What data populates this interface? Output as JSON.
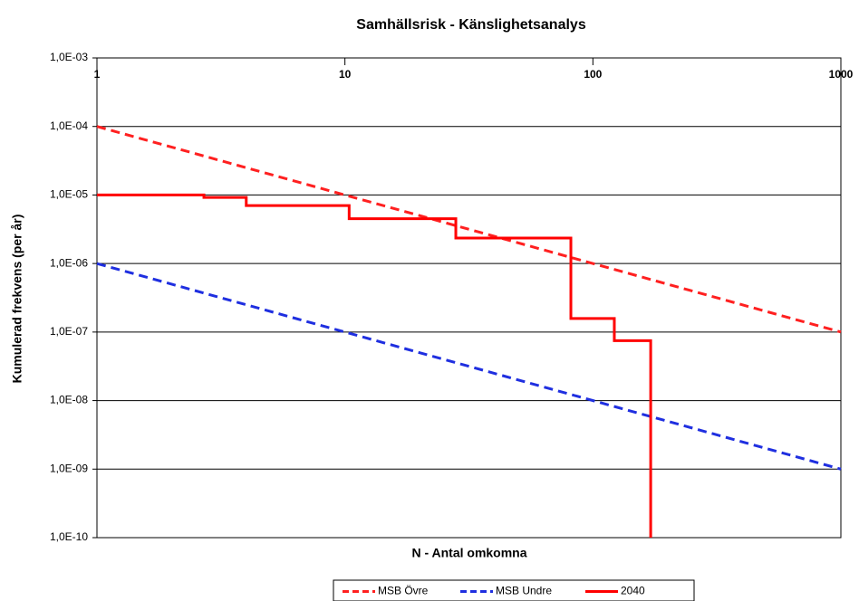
{
  "chart_data": {
    "type": "line",
    "title": "Samhällsrisk - Känslighetsanalys",
    "xlabel": "N - Antal omkomna",
    "ylabel": "Kumulerad frekvens (per år)",
    "xscale": "log",
    "yscale": "log",
    "xlim": [
      1,
      1000
    ],
    "ylim": [
      1e-10,
      0.001
    ],
    "xticks": [
      1,
      10,
      100,
      1000
    ],
    "yticks": [
      {
        "value": 0.001,
        "label": "1,0E-03"
      },
      {
        "value": 0.0001,
        "label": "1,0E-04"
      },
      {
        "value": 1e-05,
        "label": "1,0E-05"
      },
      {
        "value": 1e-06,
        "label": "1,0E-06"
      },
      {
        "value": 1e-07,
        "label": "1,0E-07"
      },
      {
        "value": 1e-08,
        "label": "1,0E-08"
      },
      {
        "value": 1e-09,
        "label": "1,0E-09"
      },
      {
        "value": 1e-10,
        "label": "1,0E-10"
      }
    ],
    "grid": true,
    "legend": "bottom",
    "series": [
      {
        "name": "MSB Övre",
        "color": "#ff2020",
        "linestyle": "dashed",
        "x": [
          1,
          1000
        ],
        "values": [
          0.0001,
          1e-07
        ]
      },
      {
        "name": "MSB Undre",
        "color": "#1f2fe0",
        "linestyle": "dashed",
        "x": [
          1,
          1000
        ],
        "values": [
          1e-06,
          1e-09
        ]
      },
      {
        "name": "2040",
        "color": "#ff0000",
        "linestyle": "solid",
        "step": "post",
        "x": [
          1,
          2.7,
          4,
          10.4,
          28,
          81.5,
          122,
          171
        ],
        "values": [
          1e-05,
          9.2e-06,
          7e-06,
          4.5e-06,
          2.35e-06,
          1.58e-07,
          7.5e-08,
          1e-10
        ]
      }
    ]
  }
}
